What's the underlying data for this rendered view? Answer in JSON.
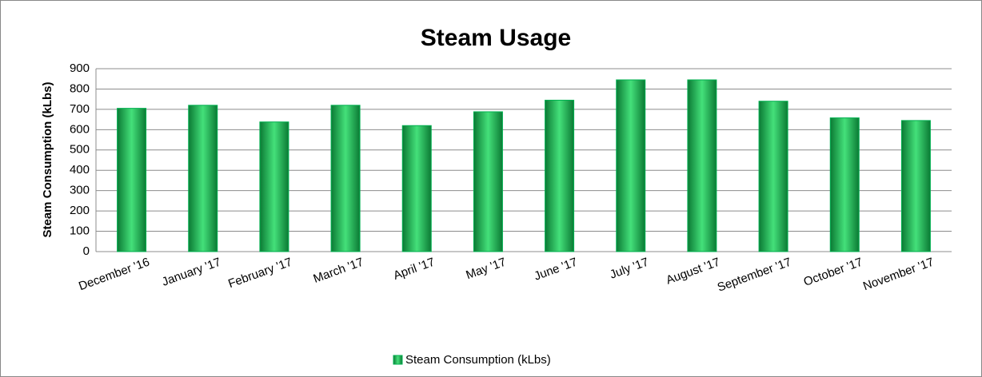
{
  "chart_data": {
    "type": "bar",
    "title": "Steam Usage",
    "y_label": "Steam Consumption (kLbs)",
    "categories": [
      "December '16",
      "January '17",
      "February '17",
      "March '17",
      "April '17",
      "May '17",
      "June '17",
      "July '17",
      "August '17",
      "September '17",
      "October '17",
      "November '17"
    ],
    "series": [
      {
        "name": "Steam Consumption (kLbs)",
        "color": "#00b050",
        "values": [
          705,
          720,
          638,
          720,
          620,
          688,
          745,
          845,
          845,
          740,
          658,
          645
        ]
      }
    ],
    "ylim": [
      0,
      900
    ],
    "yticks": [
      0,
      100,
      200,
      300,
      400,
      500,
      600,
      700,
      800,
      900
    ],
    "grid": true,
    "legend": "bottom"
  }
}
